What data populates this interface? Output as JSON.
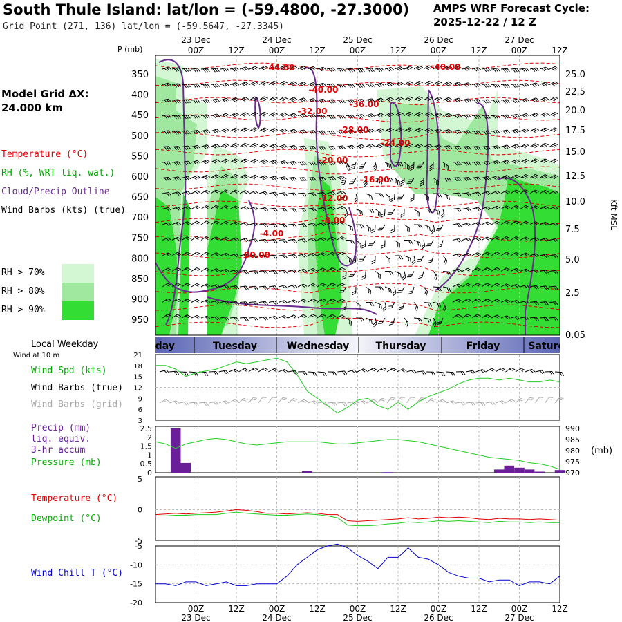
{
  "header": {
    "title": "South Thule Island:  lat/lon = (-59.4800, -27.3000)",
    "subtitle": "Grid Point (271, 136) lat/lon = (-59.5647, -27.3345)",
    "model_line1": "AMPS WRF Forecast Cycle:",
    "model_line2": "2025-12-22 / 12  Z"
  },
  "left_panel": {
    "grid_label": "Model Grid ΔX:",
    "grid_value": " 24.000 km",
    "legend_temperature": "Temperature (°C)",
    "legend_rh": "RH (%, WRT liq. wat.)",
    "legend_cloud": "Cloud/Precip Outline",
    "legend_wind": "Wind Barbs (kts) (true)",
    "rh_levels": [
      "RH > 70%",
      "RH > 80%",
      "RH > 90%"
    ],
    "local_weekday": "Local Weekday",
    "wind_at_10m": "Wind at 10 m",
    "wind_spd_label": "Wind Spd (kts)",
    "wind_barbs_true": "Wind Barbs (true)",
    "wind_barbs_grid": "Wind Barbs (grid)",
    "precip_label": "Precip (mm)",
    "precip_sub1": "liq. equiv.",
    "precip_sub2": "3-hr accum",
    "pressure_label": "Pressure (mb)",
    "temp_label": "Temperature (°C)",
    "dewpoint_label": "Dewpoint (°C)",
    "windchill_label": "Wind Chill T (°C)"
  },
  "colors": {
    "temperature": "#e00000",
    "rh_text": "#00aa00",
    "cloud": "#6a2c8f",
    "wind": "#000000",
    "grid_wind": "#aaaaaa",
    "rh70": "#d2f7d2",
    "rh80": "#a0e8a0",
    "rh90": "#33dd33",
    "dewpoint": "#22cc22",
    "windchill": "#0000cc",
    "precip_bar": "#6a1f99"
  },
  "chart_data": [
    {
      "name": "time-height cross section",
      "type": "heatmap",
      "pressure_axis_label": "P (mb)",
      "pressure_ticks": [
        350,
        400,
        450,
        500,
        550,
        600,
        650,
        700,
        750,
        800,
        850,
        900,
        950
      ],
      "height_axis_label": "Kft MSL",
      "height_ticks": [
        "25.0",
        "22.5",
        "20.0",
        "17.5",
        "15.0",
        "12.5",
        "10.0",
        "7.5",
        "5.0",
        "2.5",
        "0.05"
      ],
      "top_time_ticks": [
        "00Z",
        "12Z",
        "00Z",
        "12Z",
        "00Z",
        "12Z",
        "00Z",
        "12Z",
        "00Z",
        "12Z"
      ],
      "top_dates": [
        "23 Dec",
        "24 Dec",
        "25 Dec",
        "26 Dec",
        "27 Dec"
      ],
      "temperature_labels": [
        "-44.00",
        "-40.00",
        "-40.00",
        "-36.00",
        "-32.00",
        "-28.00",
        "-24.00",
        "-20.00",
        "-16.00",
        "-12.00",
        "-8.00",
        "-4.00",
        "00.00"
      ]
    },
    {
      "name": "weekday bar",
      "type": "table",
      "days": [
        "Monday",
        "Tuesday",
        "Wednesday",
        "Thursday",
        "Friday",
        "Saturday"
      ]
    },
    {
      "name": "surface wind",
      "type": "line",
      "ylim": [
        3,
        21
      ],
      "yticks": [
        "21",
        "18",
        "15",
        "12",
        "9",
        "6",
        "3"
      ],
      "wind_speed_kts": [
        18,
        18,
        17,
        15,
        16,
        16.5,
        17,
        18,
        19,
        18.5,
        19,
        19.5,
        20,
        19,
        15.5,
        11,
        9,
        7,
        5,
        6.5,
        8.5,
        9,
        7,
        6,
        8,
        6,
        8,
        9.5,
        10.5,
        11.5,
        13,
        14,
        14.5,
        14.5,
        14,
        14.5,
        14,
        13.5,
        13.5,
        14,
        13.5
      ]
    },
    {
      "name": "precip and pressure",
      "type": "bar",
      "precip_yticks": [
        "2.5",
        "2",
        "1.5",
        "1",
        "0.5",
        "0"
      ],
      "precip_ylim": [
        0,
        2.5
      ],
      "pressure_yticks": [
        "990",
        "985",
        "980",
        "975",
        "970"
      ],
      "pressure_ylim": [
        970,
        990
      ],
      "pressure_unit": "(mb)",
      "precip_mm": [
        0,
        2.5,
        0.55,
        0,
        0,
        0,
        0,
        0,
        0,
        0,
        0,
        0,
        0,
        0,
        0.09,
        0,
        0,
        0,
        0,
        0,
        0,
        0,
        0.03,
        0,
        0,
        0,
        0,
        0,
        0,
        0,
        0,
        0,
        0,
        0.18,
        0.4,
        0.28,
        0.18,
        0.06,
        0,
        0.15,
        0
      ],
      "pressure_mb": [
        984,
        983,
        981,
        983,
        984,
        985,
        985.5,
        985,
        984,
        983,
        982.5,
        983,
        983.5,
        984,
        984,
        984,
        984,
        983.5,
        983,
        983,
        983.5,
        984,
        984.5,
        985,
        985,
        984.5,
        984,
        983,
        982,
        981,
        980,
        979,
        978,
        977,
        976.5,
        976,
        975.5,
        974.5,
        974,
        973,
        971.5
      ]
    },
    {
      "name": "temperature and dewpoint",
      "type": "line",
      "ylim": [
        -5,
        5
      ],
      "yticks": [
        "5",
        "0",
        "-5"
      ],
      "temperature_c": [
        -0.8,
        -0.7,
        -0.6,
        -0.7,
        -0.6,
        -0.5,
        -0.4,
        -0.2,
        0,
        -0.1,
        -0.3,
        -0.6,
        -0.6,
        -0.7,
        -0.6,
        -0.5,
        -0.6,
        -0.8,
        -0.8,
        -1.8,
        -1.9,
        -1.8,
        -1.7,
        -1.6,
        -1.5,
        -1.3,
        -1.5,
        -1.4,
        -1.2,
        -1.3,
        -1.2,
        -1.3,
        -1.5,
        -1.6,
        -1.4,
        -1.5,
        -1.5,
        -1.6,
        -1.5,
        -1.6,
        -1.7
      ],
      "dewpoint_c": [
        -1.0,
        -1.0,
        -0.9,
        -0.9,
        -0.8,
        -0.8,
        -0.8,
        -0.6,
        -0.4,
        -0.6,
        -0.7,
        -0.8,
        -0.9,
        -0.9,
        -0.8,
        -0.7,
        -0.8,
        -1.0,
        -1.3,
        -2.5,
        -2.6,
        -2.6,
        -2.5,
        -2.3,
        -2.2,
        -2.0,
        -2.1,
        -2.0,
        -1.8,
        -1.9,
        -1.8,
        -1.9,
        -2.0,
        -2.1,
        -1.9,
        -2.0,
        -2.0,
        -2.1,
        -2.0,
        -2.1,
        -2.1
      ]
    },
    {
      "name": "wind chill",
      "type": "line",
      "ylim": [
        -20,
        -5
      ],
      "yticks": [
        "-5",
        "-10",
        "-15",
        "-20"
      ],
      "wind_chill_c": [
        -15,
        -15,
        -15.5,
        -14.5,
        -14.5,
        -15.5,
        -15,
        -14.5,
        -15.5,
        -15.5,
        -15,
        -15,
        -15,
        -13,
        -10,
        -8,
        -6,
        -5,
        -4.5,
        -5.5,
        -7.5,
        -9,
        -11,
        -8,
        -8,
        -5.5,
        -8,
        -8.5,
        -10,
        -12,
        -13,
        -13.5,
        -13.5,
        -14.5,
        -14,
        -14,
        -15.5,
        -14.5,
        -14.5,
        -15,
        -13
      ]
    },
    {
      "name": "bottom time axis",
      "type": "table",
      "time_ticks": [
        "00Z",
        "12Z",
        "00Z",
        "12Z",
        "00Z",
        "12Z",
        "00Z",
        "12Z",
        "00Z",
        "12Z"
      ],
      "dates": [
        "23 Dec",
        "24 Dec",
        "25 Dec",
        "26 Dec",
        "27 Dec"
      ]
    }
  ]
}
